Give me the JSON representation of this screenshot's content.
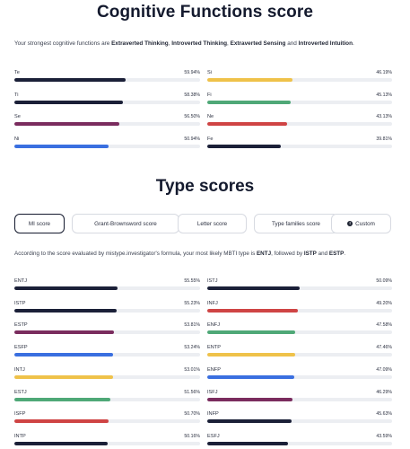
{
  "cognitive": {
    "title": "Cognitive Functions score",
    "intro_prefix": "Your strongest cognitive functions are ",
    "intro_f1": "Extraverted Thinking",
    "intro_sep1": ", ",
    "intro_f2": "Introverted Thinking",
    "intro_sep2": ", ",
    "intro_f3": "Extraverted Sensing",
    "intro_and": " and ",
    "intro_f4": "Introverted Intuition",
    "intro_end": ".",
    "left": [
      {
        "label": "Te",
        "pct": "59.94%",
        "value": 59.94,
        "color": "#1b2038"
      },
      {
        "label": "Ti",
        "pct": "58.38%",
        "value": 58.38,
        "color": "#1b2038"
      },
      {
        "label": "Se",
        "pct": "56.50%",
        "value": 56.5,
        "color": "#7a2c5e"
      },
      {
        "label": "Ni",
        "pct": "50.94%",
        "value": 50.94,
        "color": "#3a6fe0"
      }
    ],
    "right": [
      {
        "label": "Si",
        "pct": "46.19%",
        "value": 46.19,
        "color": "#efc24a"
      },
      {
        "label": "Fi",
        "pct": "45.13%",
        "value": 45.13,
        "color": "#4fa877"
      },
      {
        "label": "Ne",
        "pct": "43.13%",
        "value": 43.13,
        "color": "#cf4444"
      },
      {
        "label": "Fe",
        "pct": "39.81%",
        "value": 39.81,
        "color": "#1b2038"
      }
    ]
  },
  "types": {
    "title": "Type scores",
    "tabs": [
      {
        "label": "MI score",
        "active": true
      },
      {
        "label": "Grant-Brownsword score",
        "active": false
      },
      {
        "label": "Letter score",
        "active": false
      },
      {
        "label": "Type families score",
        "active": false
      },
      {
        "label": "Custom",
        "active": false,
        "icon": "info-icon"
      }
    ],
    "verdict_prefix": "According to the score evaluated by mistype.investigator's formula, your most likely MBTI type is ",
    "verdict_t1": "ENTJ",
    "verdict_mid": ", followed by ",
    "verdict_t2": "ISTP",
    "verdict_and": " and ",
    "verdict_t3": "ESTP",
    "verdict_end": ".",
    "left": [
      {
        "label": "ENTJ",
        "pct": "55.55%",
        "value": 55.55,
        "color": "#1b2038"
      },
      {
        "label": "ISTP",
        "pct": "55.23%",
        "value": 55.23,
        "color": "#1b2038"
      },
      {
        "label": "ESTP",
        "pct": "53.81%",
        "value": 53.81,
        "color": "#7a2c5e"
      },
      {
        "label": "ESFP",
        "pct": "53.24%",
        "value": 53.24,
        "color": "#3a6fe0"
      },
      {
        "label": "INTJ",
        "pct": "53.01%",
        "value": 53.01,
        "color": "#efc24a"
      },
      {
        "label": "ESTJ",
        "pct": "51.56%",
        "value": 51.56,
        "color": "#4fa877"
      },
      {
        "label": "ISFP",
        "pct": "50.70%",
        "value": 50.7,
        "color": "#cf4444"
      },
      {
        "label": "INTP",
        "pct": "50.16%",
        "value": 50.16,
        "color": "#1b2038"
      }
    ],
    "right": [
      {
        "label": "ISTJ",
        "pct": "50.09%",
        "value": 50.09,
        "color": "#1b2038"
      },
      {
        "label": "INFJ",
        "pct": "49.20%",
        "value": 49.2,
        "color": "#cf4444"
      },
      {
        "label": "ENFJ",
        "pct": "47.58%",
        "value": 47.58,
        "color": "#4fa877"
      },
      {
        "label": "ENTP",
        "pct": "47.46%",
        "value": 47.46,
        "color": "#efc24a"
      },
      {
        "label": "ENFP",
        "pct": "47.09%",
        "value": 47.09,
        "color": "#3a6fe0"
      },
      {
        "label": "ISFJ",
        "pct": "46.29%",
        "value": 46.29,
        "color": "#7a2c5e"
      },
      {
        "label": "INFP",
        "pct": "45.63%",
        "value": 45.63,
        "color": "#1b2038"
      },
      {
        "label": "ESFJ",
        "pct": "43.59%",
        "value": 43.59,
        "color": "#1b2038"
      }
    ]
  }
}
